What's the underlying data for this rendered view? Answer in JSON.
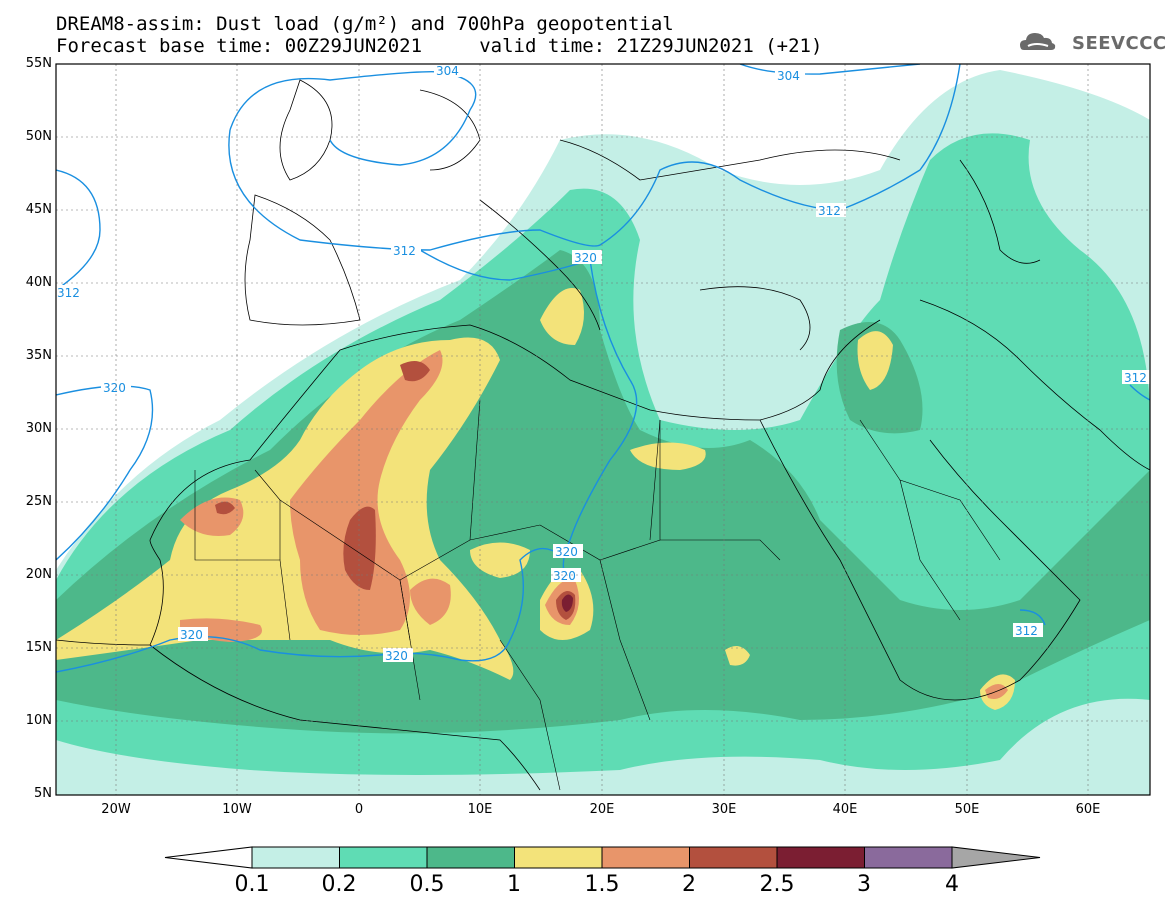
{
  "header": {
    "line1": "DREAM8-assim: Dust load (g/m²) and 700hPa geopotential",
    "line2": "Forecast base time: 00Z29JUN2021     valid time: 21Z29JUN2021 (+21)",
    "logo": "SEEVCCC"
  },
  "axes": {
    "lat_labels": [
      "55N",
      "50N",
      "45N",
      "40N",
      "35N",
      "30N",
      "25N",
      "20N",
      "15N",
      "10N",
      "5N"
    ],
    "lon_labels": [
      "20W",
      "10W",
      "0",
      "10E",
      "20E",
      "30E",
      "40E",
      "50E",
      "60E"
    ]
  },
  "colorbar": {
    "labels": [
      "0.1",
      "0.2",
      "0.5",
      "1",
      "1.5",
      "2",
      "2.5",
      "3",
      "4"
    ],
    "colors": [
      "#c4efe6",
      "#5fdcb4",
      "#4db88a",
      "#f3e37a",
      "#e8956a",
      "#b3503e",
      "#7b1e32",
      "#8a6a9c"
    ],
    "under_color": "#ffffff",
    "over_color": "#a6a6a6"
  },
  "contours": {
    "color": "#1a8fe0",
    "labels": [
      "304",
      "304",
      "312",
      "312",
      "312",
      "312",
      "320",
      "320",
      "320",
      "320",
      "320",
      "320",
      "312"
    ]
  }
}
